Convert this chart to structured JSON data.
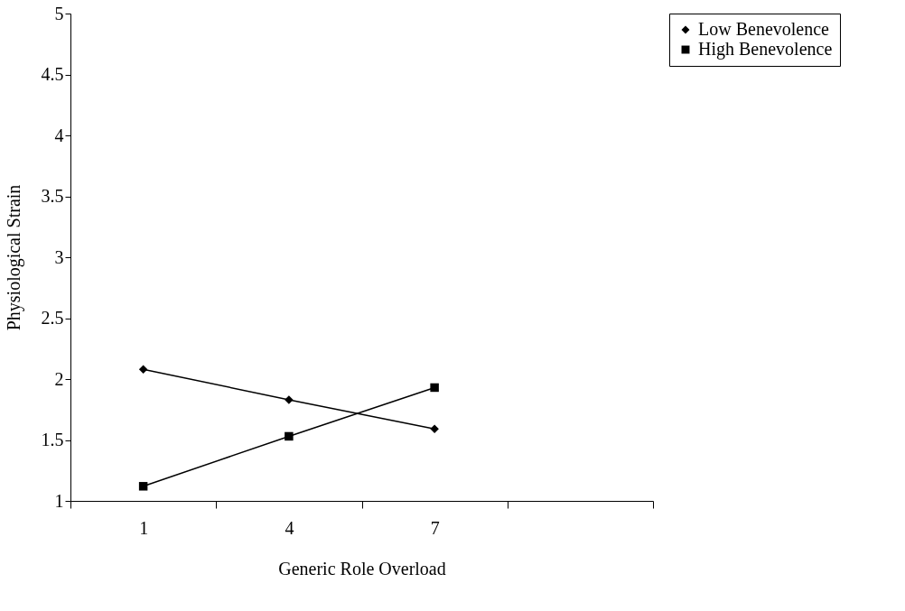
{
  "chart_data": {
    "type": "line",
    "xlabel": "Generic Role Overload",
    "ylabel": "Physiological Strain",
    "categories": [
      "1",
      "4",
      "7",
      null
    ],
    "series": [
      {
        "name": "Low Benevolence",
        "color": "#000000",
        "marker": "diamond",
        "values": [
          2.08,
          1.83,
          1.59,
          null
        ]
      },
      {
        "name": "High Benevolence",
        "color": "#000000",
        "marker": "square",
        "values": [
          1.12,
          1.53,
          1.93,
          null
        ]
      }
    ],
    "ylim": [
      1,
      5
    ],
    "yticks": [
      1,
      1.5,
      2,
      2.5,
      3,
      3.5,
      4,
      4.5,
      5
    ],
    "grid": false,
    "legend": "right",
    "line_style": "solid"
  }
}
